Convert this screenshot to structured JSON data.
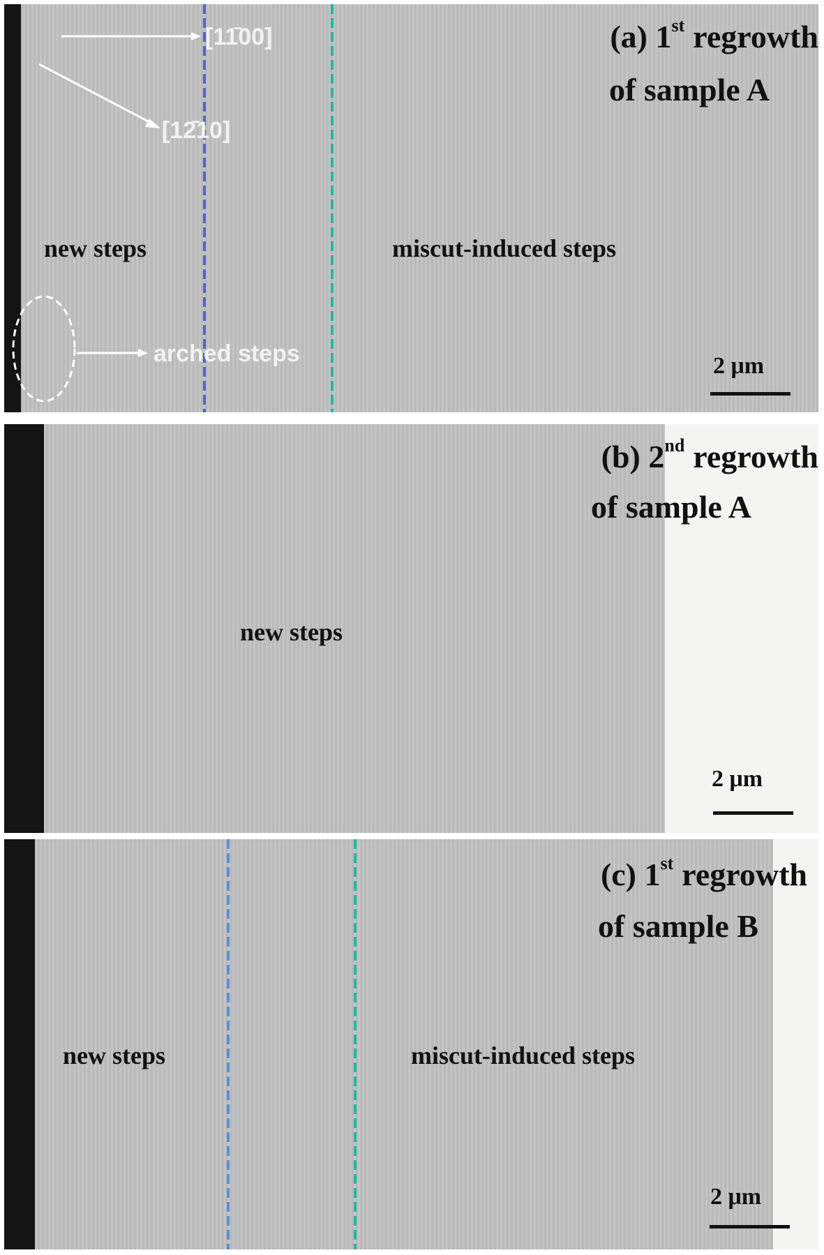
{
  "panels": [
    {
      "title": {
        "main": "(a) 1",
        "sup": "st",
        "rest": "regrowth",
        "line2": "of sample A"
      },
      "regions": [
        "new steps",
        "miscut-induced steps"
      ],
      "annotations": {
        "direction_1": "[11̄00]",
        "direction_2": "[12̄10]",
        "arched": "arched steps"
      },
      "scale_bar": "2 μm"
    },
    {
      "title": {
        "main": "(b) 2",
        "sup": "nd",
        "rest": "regrowth",
        "line2": "of sample A"
      },
      "regions": [
        "new steps"
      ],
      "scale_bar": "2 μm"
    },
    {
      "title": {
        "main": "(c) 1",
        "sup": "st",
        "rest": "regrowth",
        "line2": "of sample B"
      },
      "regions": [
        "new steps",
        "miscut-induced steps"
      ],
      "scale_bar": "2 μm"
    }
  ]
}
